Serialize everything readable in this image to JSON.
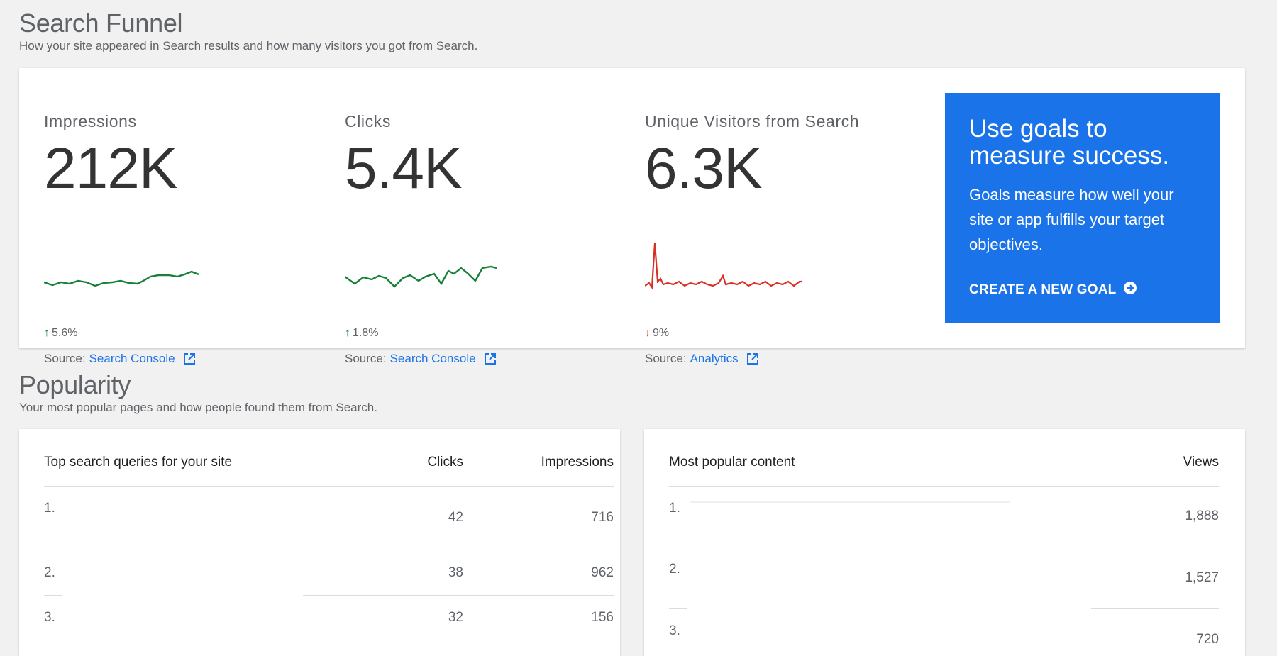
{
  "search_funnel": {
    "title": "Search Funnel",
    "subtitle": "How your site appeared in Search results and how many visitors you got from Search.",
    "metrics": [
      {
        "label": "Impressions",
        "value": "212K",
        "change": "5.6%",
        "direction": "up",
        "source_prefix": "Source:",
        "source_link": "Search Console",
        "color": "#188038"
      },
      {
        "label": "Clicks",
        "value": "5.4K",
        "change": "1.8%",
        "direction": "up",
        "source_prefix": "Source:",
        "source_link": "Search Console",
        "color": "#188038"
      },
      {
        "label": "Unique Visitors from Search",
        "value": "6.3K",
        "change": "9%",
        "direction": "down",
        "source_prefix": "Source:",
        "source_link": "Analytics",
        "color": "#d93025"
      }
    ],
    "goal_promo": {
      "title": "Use goals to measure success.",
      "body": "Goals measure how well your site or app fulfills your target objectives.",
      "cta": "CREATE A NEW GOAL",
      "background": "#1a73e8"
    }
  },
  "popularity": {
    "title": "Popularity",
    "subtitle": "Your most popular pages and how people found them from Search.",
    "queries_table": {
      "headers": [
        "Top search queries for your site",
        "Clicks",
        "Impressions"
      ],
      "rows": [
        {
          "rank": "1.",
          "clicks": "42",
          "impressions": "716"
        },
        {
          "rank": "2.",
          "clicks": "38",
          "impressions": "962"
        },
        {
          "rank": "3.",
          "clicks": "32",
          "impressions": "156"
        }
      ]
    },
    "content_table": {
      "headers": [
        "Most popular content",
        "Views"
      ],
      "rows": [
        {
          "rank": "1.",
          "views": "1,888"
        },
        {
          "rank": "2.",
          "views": "1,527"
        },
        {
          "rank": "3.",
          "views": "720"
        }
      ]
    }
  },
  "colors": {
    "accent": "#1a73e8",
    "positive": "#188038",
    "negative": "#d93025",
    "background": "#f1f1f1"
  }
}
